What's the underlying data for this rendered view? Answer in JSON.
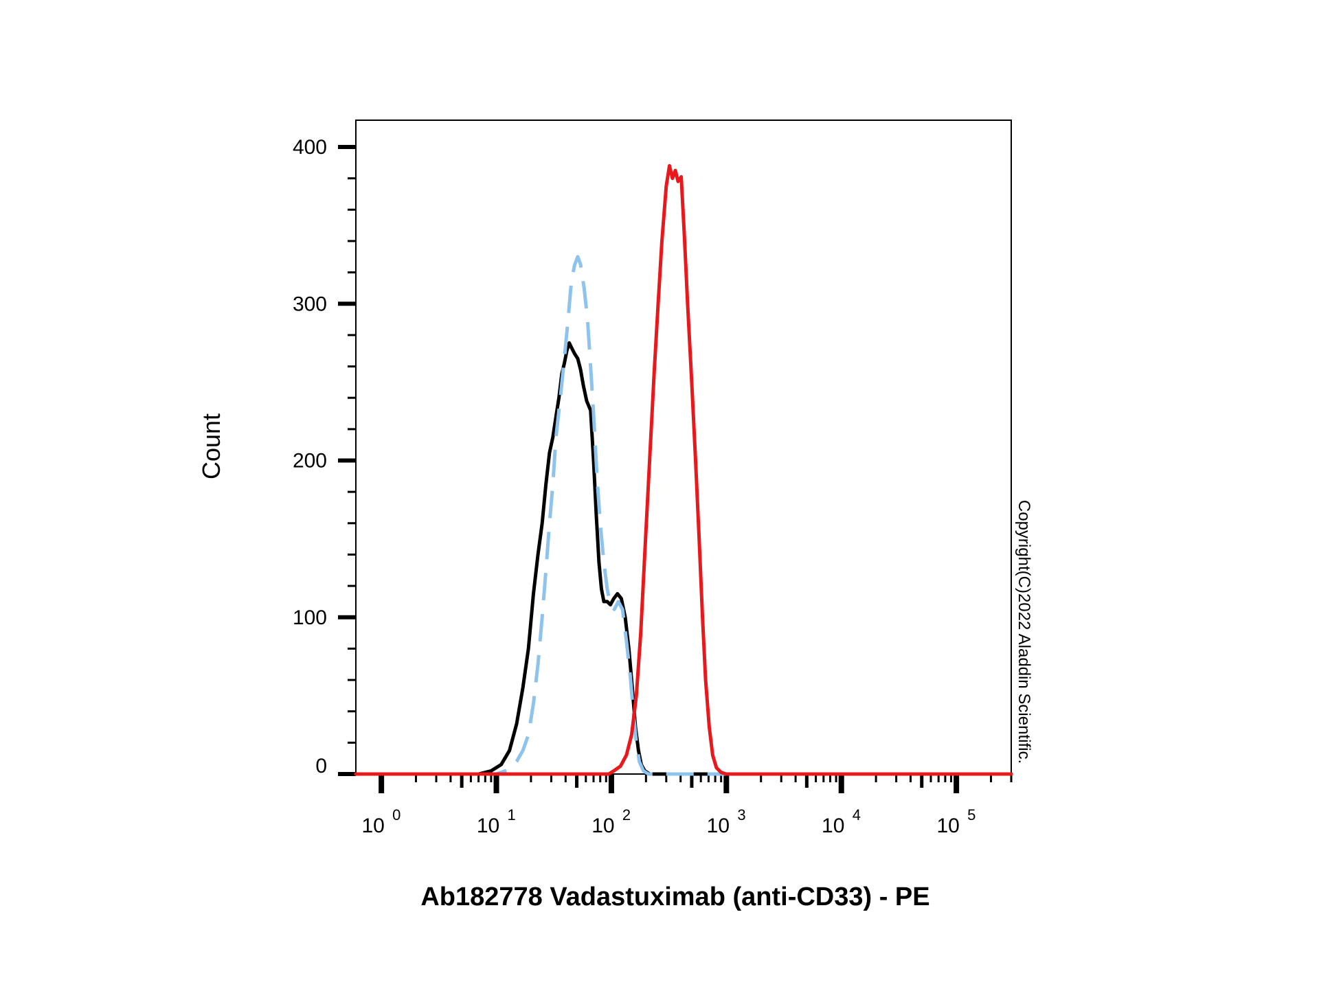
{
  "chart_data": {
    "type": "line",
    "xlabel": "Ab182778 Vadastuximab (anti-CD33) - PE",
    "ylabel": "Count",
    "x_scale": "log",
    "xlim": [
      0.6,
      300000
    ],
    "ylim": [
      0,
      400
    ],
    "grid": false,
    "y_ticks": [
      {
        "value": 0,
        "label": "0"
      },
      {
        "value": 100,
        "label": "100"
      },
      {
        "value": 200,
        "label": "200"
      },
      {
        "value": 300,
        "label": "300"
      },
      {
        "value": 400,
        "label": "400"
      }
    ],
    "x_ticks": [
      {
        "value": 1,
        "base": "10",
        "exp": "0"
      },
      {
        "value": 10,
        "base": "10",
        "exp": "1"
      },
      {
        "value": 100,
        "base": "10",
        "exp": "2"
      },
      {
        "value": 1000,
        "base": "10",
        "exp": "3"
      },
      {
        "value": 10000,
        "base": "10",
        "exp": "4"
      },
      {
        "value": 100000,
        "base": "10",
        "exp": "5"
      }
    ],
    "series": [
      {
        "color": "#000000",
        "style": "solid",
        "points": [
          [
            0.6,
            0
          ],
          [
            7,
            0
          ],
          [
            9,
            2
          ],
          [
            11,
            6
          ],
          [
            13,
            15
          ],
          [
            15,
            32
          ],
          [
            17,
            55
          ],
          [
            19,
            80
          ],
          [
            21,
            115
          ],
          [
            23,
            140
          ],
          [
            25,
            160
          ],
          [
            27,
            185
          ],
          [
            29,
            205
          ],
          [
            31,
            215
          ],
          [
            33,
            228
          ],
          [
            35,
            240
          ],
          [
            37,
            255
          ],
          [
            39,
            262
          ],
          [
            41,
            270
          ],
          [
            43,
            275
          ],
          [
            45,
            272
          ],
          [
            48,
            268
          ],
          [
            51,
            265
          ],
          [
            54,
            258
          ],
          [
            57,
            248
          ],
          [
            61,
            238
          ],
          [
            66,
            232
          ],
          [
            70,
            200
          ],
          [
            74,
            165
          ],
          [
            78,
            135
          ],
          [
            82,
            118
          ],
          [
            86,
            110
          ],
          [
            92,
            110
          ],
          [
            98,
            108
          ],
          [
            105,
            112
          ],
          [
            113,
            115
          ],
          [
            122,
            112
          ],
          [
            132,
            100
          ],
          [
            142,
            80
          ],
          [
            152,
            55
          ],
          [
            162,
            30
          ],
          [
            172,
            15
          ],
          [
            182,
            6
          ],
          [
            195,
            2
          ],
          [
            215,
            0
          ],
          [
            300000,
            0
          ]
        ]
      },
      {
        "color": "#8ec3ee",
        "style": "dashed",
        "points": [
          [
            0.6,
            0
          ],
          [
            10,
            0
          ],
          [
            13,
            3
          ],
          [
            15,
            8
          ],
          [
            17,
            15
          ],
          [
            19,
            25
          ],
          [
            21,
            45
          ],
          [
            23,
            70
          ],
          [
            25,
            100
          ],
          [
            27,
            130
          ],
          [
            29,
            160
          ],
          [
            31,
            185
          ],
          [
            33,
            215
          ],
          [
            36,
            240
          ],
          [
            39,
            265
          ],
          [
            42,
            290
          ],
          [
            45,
            315
          ],
          [
            48,
            325
          ],
          [
            51,
            330
          ],
          [
            54,
            325
          ],
          [
            58,
            310
          ],
          [
            62,
            290
          ],
          [
            66,
            260
          ],
          [
            70,
            230
          ],
          [
            75,
            190
          ],
          [
            80,
            160
          ],
          [
            86,
            135
          ],
          [
            92,
            118
          ],
          [
            98,
            108
          ],
          [
            106,
            105
          ],
          [
            115,
            110
          ],
          [
            125,
            105
          ],
          [
            135,
            85
          ],
          [
            145,
            65
          ],
          [
            155,
            40
          ],
          [
            165,
            20
          ],
          [
            175,
            8
          ],
          [
            190,
            2
          ],
          [
            210,
            0
          ],
          [
            300000,
            0
          ]
        ]
      },
      {
        "color": "#e8191d",
        "style": "solid",
        "points": [
          [
            0.6,
            0
          ],
          [
            95,
            0
          ],
          [
            105,
            2
          ],
          [
            120,
            5
          ],
          [
            135,
            12
          ],
          [
            150,
            25
          ],
          [
            165,
            50
          ],
          [
            180,
            90
          ],
          [
            195,
            140
          ],
          [
            215,
            200
          ],
          [
            235,
            255
          ],
          [
            255,
            300
          ],
          [
            275,
            340
          ],
          [
            300,
            375
          ],
          [
            320,
            388
          ],
          [
            340,
            380
          ],
          [
            360,
            385
          ],
          [
            380,
            378
          ],
          [
            405,
            381
          ],
          [
            430,
            345
          ],
          [
            460,
            300
          ],
          [
            500,
            250
          ],
          [
            540,
            200
          ],
          [
            580,
            150
          ],
          [
            620,
            100
          ],
          [
            660,
            60
          ],
          [
            710,
            30
          ],
          [
            760,
            12
          ],
          [
            820,
            4
          ],
          [
            900,
            1
          ],
          [
            1000,
            0
          ],
          [
            300000,
            0
          ]
        ]
      }
    ]
  },
  "copyright": "Copyright(C)2022 Aladdin Scientific."
}
